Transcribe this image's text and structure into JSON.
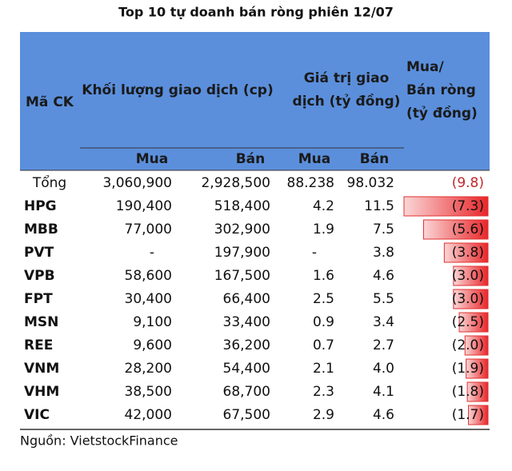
{
  "title": "Top 10 tự doanh bán ròng phiên 12/07",
  "table": {
    "header": {
      "code": "Mã CK",
      "volume": "Khối lượng giao dịch (cp)",
      "value": [
        "Giá trị giao",
        "dịch (tỷ đồng)"
      ],
      "net": [
        "Mua/",
        "Bán ròng",
        "(tỷ đồng)"
      ],
      "sub": [
        "Mua",
        "Bán",
        "Mua",
        "Bán"
      ]
    },
    "rows": [
      [
        "Tổng",
        "3,060,900",
        "2,928,500",
        "88.238",
        "98.032",
        {
          "value": -9.8,
          "label": "(9.8)"
        }
      ],
      [
        "HPG",
        "190,400",
        "518,400",
        "4.2",
        "11.5",
        {
          "value": -7.3,
          "label": "(7.3)"
        }
      ],
      [
        "MBB",
        "77,000",
        "302,900",
        "1.9",
        "7.5",
        {
          "value": -5.6,
          "label": "(5.6)"
        }
      ],
      [
        "PVT",
        "-",
        "197,900",
        "-",
        "3.8",
        {
          "value": -3.8,
          "label": "(3.8)"
        }
      ],
      [
        "VPB",
        "58,600",
        "167,500",
        "1.6",
        "4.6",
        {
          "value": -3.0,
          "label": "(3.0)"
        }
      ],
      [
        "FPT",
        "30,400",
        "66,400",
        "2.5",
        "5.5",
        {
          "value": -3.0,
          "label": "(3.0)"
        }
      ],
      [
        "MSN",
        "9,100",
        "33,400",
        "0.9",
        "3.4",
        {
          "value": -2.5,
          "label": "(2.5)"
        }
      ],
      [
        "REE",
        "9,600",
        "36,200",
        "0.7",
        "2.7",
        {
          "value": -2.0,
          "label": "(2.0)"
        }
      ],
      [
        "VNM",
        "28,200",
        "54,400",
        "2.1",
        "4.0",
        {
          "value": -1.9,
          "label": "(1.9)"
        }
      ],
      [
        "VHM",
        "38,500",
        "68,700",
        "2.3",
        "4.1",
        {
          "value": -1.8,
          "label": "(1.8)"
        }
      ],
      [
        "VIC",
        "42,000",
        "67,500",
        "2.9",
        "4.6",
        {
          "value": -1.7,
          "label": "(1.7)"
        }
      ]
    ]
  },
  "source": "Nguồn: VietstockFinance"
}
